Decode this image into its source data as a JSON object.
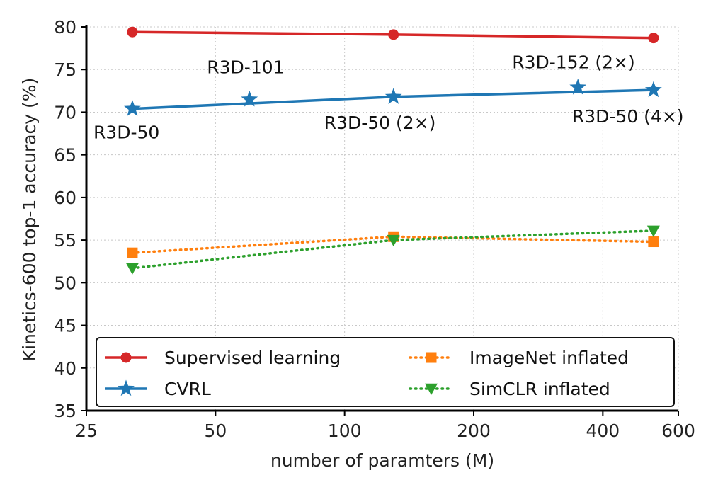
{
  "chart_data": {
    "type": "line",
    "xlabel": "number of paramters (M)",
    "ylabel": "Kinetics-600 top-1 accuracy (%)",
    "x_scale": "log",
    "xlim": [
      25,
      600
    ],
    "ylim": [
      35,
      80
    ],
    "x_ticks": [
      25,
      50,
      100,
      200,
      400,
      600
    ],
    "y_ticks": [
      35,
      40,
      45,
      50,
      55,
      60,
      65,
      70,
      75,
      80
    ],
    "grid": true,
    "legend_position": "lower-center",
    "series": [
      {
        "name": "Supervised learning",
        "color": "#d62728",
        "marker": "circle",
        "line_style": "solid",
        "points": [
          {
            "x": 32,
            "y": 79.4
          },
          {
            "x": 130,
            "y": 79.1
          },
          {
            "x": 525,
            "y": 78.7
          }
        ]
      },
      {
        "name": "CVRL",
        "color": "#1f77b4",
        "marker": "star",
        "line_style": "solid",
        "points": [
          {
            "x": 32,
            "y": 70.4
          },
          {
            "x": 130,
            "y": 71.8
          },
          {
            "x": 525,
            "y": 72.6
          }
        ]
      },
      {
        "name": "ImageNet inflated",
        "color": "#ff7f0e",
        "marker": "square",
        "line_style": "dotted",
        "points": [
          {
            "x": 32,
            "y": 53.5
          },
          {
            "x": 130,
            "y": 55.4
          },
          {
            "x": 525,
            "y": 54.8
          }
        ]
      },
      {
        "name": "SimCLR inflated",
        "color": "#2ca02c",
        "marker": "triangle-down",
        "line_style": "dotted",
        "points": [
          {
            "x": 32,
            "y": 51.7
          },
          {
            "x": 130,
            "y": 55.0
          },
          {
            "x": 525,
            "y": 56.1
          }
        ]
      }
    ],
    "extra_points": [
      {
        "series": "CVRL",
        "x": 60,
        "y": 71.5
      },
      {
        "series": "CVRL",
        "x": 350,
        "y": 72.9
      }
    ],
    "annotations": [
      {
        "text": "R3D-50",
        "x": 32,
        "y": 70.4,
        "position": "below"
      },
      {
        "text": "R3D-101",
        "x": 60,
        "y": 71.5,
        "position": "above"
      },
      {
        "text": "R3D-50 (2×)",
        "x": 130,
        "y": 71.8,
        "position": "below"
      },
      {
        "text": "R3D-152 (2×)",
        "x": 350,
        "y": 72.9,
        "position": "above"
      },
      {
        "text": "R3D-50 (4×)",
        "x": 525,
        "y": 72.6,
        "position": "below"
      }
    ]
  }
}
